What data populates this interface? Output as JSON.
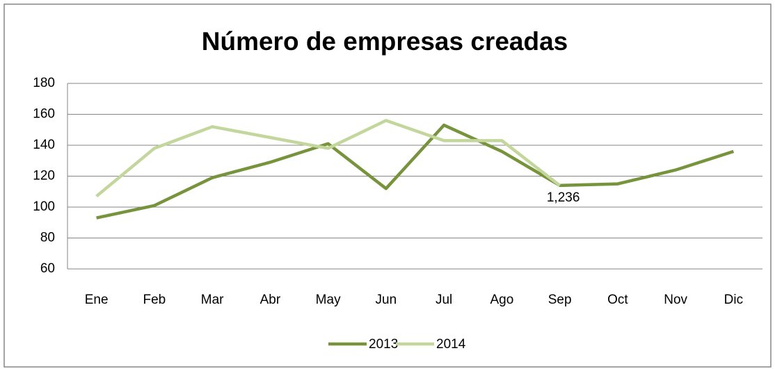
{
  "chart_data": {
    "type": "line",
    "title": "Número de empresas creadas",
    "categories": [
      "Ene",
      "Feb",
      "Mar",
      "Abr",
      "May",
      "Jun",
      "Jul",
      "Ago",
      "Sep",
      "Oct",
      "Nov",
      "Dic"
    ],
    "series": [
      {
        "name": "2013",
        "color": "#77933c",
        "values": [
          93,
          101,
          119,
          129,
          141,
          112,
          153,
          136,
          114,
          115,
          124,
          136
        ]
      },
      {
        "name": "2014",
        "color": "#c3d69b",
        "values": [
          107,
          138,
          152,
          145,
          138,
          156,
          143,
          143,
          114,
          null,
          null,
          null
        ]
      }
    ],
    "annotations": [
      "1,236"
    ],
    "ylim": [
      60,
      180
    ],
    "yticks": [
      60,
      80,
      100,
      120,
      140,
      160,
      180
    ],
    "grid": true,
    "legend": "bottom"
  }
}
